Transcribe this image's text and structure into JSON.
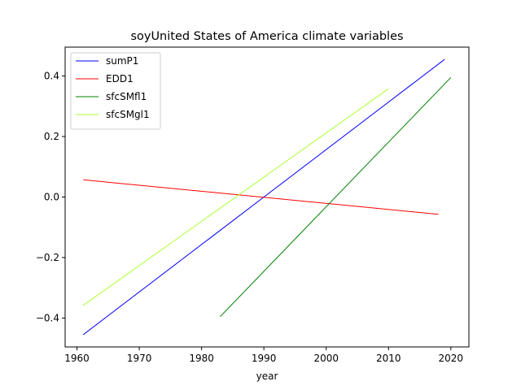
{
  "chart_data": {
    "type": "line",
    "title": "soyUnited States of America climate variables",
    "xlabel": "year",
    "ylabel": "",
    "xlim": [
      1958.1,
      2022.9
    ],
    "ylim": [
      -0.4955,
      0.4955
    ],
    "x_ticks": [
      1960,
      1970,
      1980,
      1990,
      2000,
      2010,
      2020
    ],
    "y_ticks": [
      -0.4,
      -0.2,
      0.0,
      0.2,
      0.4
    ],
    "x_tick_labels": [
      "1960",
      "1970",
      "1980",
      "1990",
      "2000",
      "2010",
      "2020"
    ],
    "y_tick_labels": [
      "−0.4",
      "−0.2",
      "0.0",
      "0.2",
      "0.4"
    ],
    "grid": false,
    "legend_position": "top-left",
    "series": [
      {
        "name": "sumP1",
        "color": "#0000ff",
        "x": [
          1961,
          2019
        ],
        "y": [
          -0.455,
          0.455
        ]
      },
      {
        "name": "EDD1",
        "color": "#ff0000",
        "x": [
          1961,
          2018
        ],
        "y": [
          0.057,
          -0.057
        ]
      },
      {
        "name": "sfcSMfl1",
        "color": "#008000",
        "x": [
          1983,
          2020
        ],
        "y": [
          -0.395,
          0.395
        ]
      },
      {
        "name": "sfcSMgl1",
        "color": "#adff2f",
        "x": [
          1961,
          2010
        ],
        "y": [
          -0.358,
          0.358
        ]
      }
    ]
  }
}
